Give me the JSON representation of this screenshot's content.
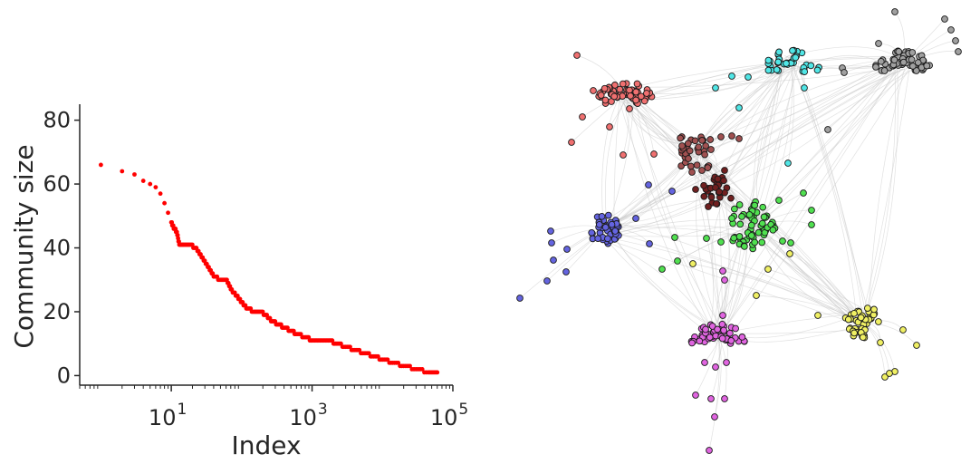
{
  "chart_data": [
    {
      "type": "scatter",
      "title": "",
      "xlabel": "Index",
      "ylabel": "Community size",
      "xscale": "log",
      "xlim": [
        0.5,
        100000
      ],
      "ylim": [
        -3,
        85
      ],
      "yticks": [
        {
          "value": 0,
          "label": "0"
        },
        {
          "value": 20,
          "label": "20"
        },
        {
          "value": 40,
          "label": "40"
        },
        {
          "value": 60,
          "label": "60"
        },
        {
          "value": 80,
          "label": "80"
        }
      ],
      "xticks": [
        {
          "value": 10,
          "base": "10",
          "exp": "1"
        },
        {
          "value": 1000,
          "base": "10",
          "exp": "3"
        },
        {
          "value": 100000,
          "base": "10",
          "exp": "5"
        }
      ],
      "grid": false,
      "marker_color": "#ff0000",
      "x": [
        1,
        2,
        3,
        4,
        5,
        6,
        7,
        8,
        9,
        10,
        11,
        12,
        13,
        15,
        18,
        22,
        27,
        33,
        40,
        50,
        60,
        70,
        85,
        100,
        120,
        150,
        180,
        220,
        270,
        330,
        400,
        500,
        600,
        800,
        1000,
        1300,
        1700,
        2200,
        3000,
        4000,
        5500,
        7500,
        10000,
        14000,
        20000,
        30000,
        45000,
        60000
      ],
      "y": [
        66,
        64,
        63,
        61,
        60,
        59,
        57,
        54,
        51,
        48,
        46,
        45,
        41,
        41,
        41,
        40,
        37,
        34,
        31,
        30,
        30,
        27,
        25,
        23,
        21,
        20,
        20,
        19,
        17,
        16,
        15,
        14,
        13,
        12,
        11,
        11,
        11,
        10,
        9,
        8,
        7,
        6,
        5,
        4,
        3,
        2,
        1,
        1
      ]
    },
    {
      "type": "network",
      "title": "",
      "communities": [
        {
          "color": "#f07070",
          "size": 66
        },
        {
          "color": "#50e6e6",
          "size": 40
        },
        {
          "color": "#a0a0a0",
          "size": 60
        },
        {
          "color": "#a05050",
          "size": 34
        },
        {
          "color": "#702020",
          "size": 30
        },
        {
          "color": "#6464e0",
          "size": 48
        },
        {
          "color": "#50e050",
          "size": 64
        },
        {
          "color": "#e064e0",
          "size": 54
        },
        {
          "color": "#f0f064",
          "size": 50
        }
      ]
    }
  ]
}
